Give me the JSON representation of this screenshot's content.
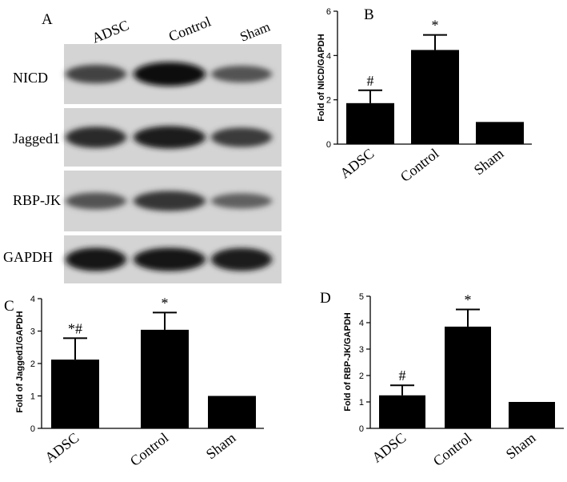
{
  "blot": {
    "panel_label": "A",
    "lanes": [
      "ADSC",
      "Control",
      "Sham"
    ],
    "rows": [
      {
        "label": "NICD",
        "band_strength": [
          0.62,
          1.0,
          0.5
        ]
      },
      {
        "label": "Jagged1",
        "band_strength": [
          0.8,
          0.9,
          0.68
        ]
      },
      {
        "label": "RBP-JK",
        "band_strength": [
          0.5,
          0.72,
          0.4
        ]
      },
      {
        "label": "GAPDH",
        "band_strength": [
          0.95,
          0.95,
          0.92
        ]
      }
    ]
  },
  "chart_data": [
    {
      "panel_label": "B",
      "type": "bar",
      "categories": [
        "ADSC",
        "Control",
        "Sham"
      ],
      "values": [
        1.85,
        4.25,
        1.0
      ],
      "errors": [
        0.58,
        0.68,
        0.0
      ],
      "markers": [
        "#",
        "*",
        ""
      ],
      "ylabel": "Fold of NICD/GAPDH",
      "ylim": [
        0,
        6
      ],
      "yticks": [
        0,
        2,
        4,
        6
      ]
    },
    {
      "panel_label": "C",
      "type": "bar",
      "categories": [
        "ADSC",
        "Control",
        "Sham"
      ],
      "values": [
        2.12,
        3.04,
        1.0
      ],
      "errors": [
        0.66,
        0.53,
        0.0
      ],
      "markers": [
        "*#",
        "*",
        ""
      ],
      "ylabel": "Fold of Jagged1/GAPDH",
      "ylim": [
        0,
        4
      ],
      "yticks": [
        0,
        1,
        2,
        3,
        4
      ]
    },
    {
      "panel_label": "D",
      "type": "bar",
      "categories": [
        "ADSC",
        "Control",
        "Sham"
      ],
      "values": [
        1.25,
        3.85,
        1.0
      ],
      "errors": [
        0.38,
        0.65,
        0.0
      ],
      "markers": [
        "#",
        "*",
        ""
      ],
      "ylabel": "Fold of RBP-JK/GAPDH",
      "ylim": [
        0,
        5
      ],
      "yticks": [
        0,
        1,
        2,
        3,
        4,
        5
      ]
    }
  ]
}
